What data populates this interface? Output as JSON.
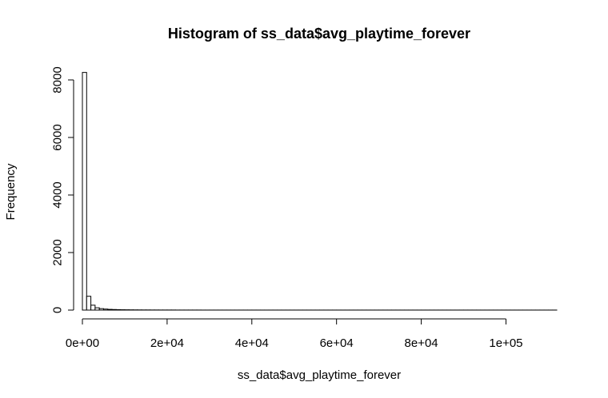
{
  "chart_data": {
    "type": "bar",
    "title": "Histogram of ss_data$avg_playtime_forever",
    "xlabel": "ss_data$avg_playtime_forever",
    "ylabel": "Frequency",
    "xlim": [
      0,
      112000
    ],
    "ylim": [
      0,
      8000
    ],
    "bin_width": 1000,
    "bin_start": 0,
    "x_ticks": [
      {
        "value": 0,
        "label": "0e+00"
      },
      {
        "value": 20000,
        "label": "2e+04"
      },
      {
        "value": 40000,
        "label": "4e+04"
      },
      {
        "value": 60000,
        "label": "6e+04"
      },
      {
        "value": 80000,
        "label": "8e+04"
      },
      {
        "value": 100000,
        "label": "1e+05"
      }
    ],
    "y_ticks": [
      {
        "value": 0,
        "label": "0"
      },
      {
        "value": 2000,
        "label": "2000"
      },
      {
        "value": 4000,
        "label": "4000"
      },
      {
        "value": 6000,
        "label": "6000"
      },
      {
        "value": 8000,
        "label": "8000"
      }
    ],
    "values": [
      8260,
      480,
      170,
      80,
      50,
      35,
      25,
      20,
      15,
      12,
      10,
      8,
      7,
      6,
      5,
      5,
      4,
      4,
      3,
      3,
      3,
      3,
      2,
      2,
      2,
      2,
      2,
      2,
      1,
      1,
      1,
      1,
      1,
      1,
      1,
      1,
      1,
      1,
      1,
      1,
      1,
      1,
      1,
      1,
      1,
      1,
      1,
      1,
      1,
      1,
      1,
      1,
      1,
      1,
      1,
      1,
      1,
      1,
      1,
      1,
      1,
      1,
      1,
      1,
      1,
      1,
      1,
      1,
      1,
      1,
      1,
      1,
      1,
      1,
      1,
      1,
      1,
      1,
      1,
      1,
      1,
      1,
      1,
      1,
      1,
      1,
      1,
      1,
      1,
      1,
      1,
      1,
      1,
      1,
      1,
      1,
      1,
      1,
      1,
      1,
      1,
      1,
      1,
      1,
      1,
      1,
      1,
      1,
      1,
      1,
      1,
      1
    ],
    "grid": false,
    "legend": "none"
  }
}
